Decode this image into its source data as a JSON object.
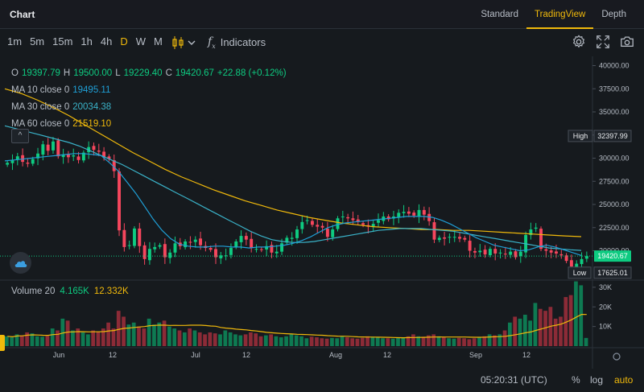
{
  "header": {
    "title": "Chart",
    "views": [
      {
        "label": "Standard",
        "active": false
      },
      {
        "label": "TradingView",
        "active": true
      },
      {
        "label": "Depth",
        "active": false
      }
    ]
  },
  "toolbar": {
    "intervals": [
      {
        "label": "1m",
        "active": false
      },
      {
        "label": "5m",
        "active": false
      },
      {
        "label": "15m",
        "active": false
      },
      {
        "label": "1h",
        "active": false
      },
      {
        "label": "4h",
        "active": false
      },
      {
        "label": "D",
        "active": true
      },
      {
        "label": "W",
        "active": false
      },
      {
        "label": "M",
        "active": false
      }
    ],
    "indicators_label": "Indicators",
    "fx_glyph": "f",
    "icons": [
      "candlestick-icon",
      "chevron-down-icon",
      "function-icon",
      "settings-gear-icon",
      "fullscreen-icon",
      "camera-icon"
    ]
  },
  "legend": {
    "ohlc": {
      "o_label": "O",
      "o": "19397.79",
      "h_label": "H",
      "h": "19500.00",
      "l_label": "L",
      "l": "19229.40",
      "c_label": "C",
      "c": "19420.67",
      "change": "+22.88 (+0.12%)"
    },
    "ma10": {
      "label": "MA 10 close 0",
      "value": "19495.11",
      "color": "#1f9fd6"
    },
    "ma30": {
      "label": "MA 30 close 0",
      "value": "20034.38",
      "color": "#3ab2c8"
    },
    "ma60": {
      "label": "MA 60 close 0",
      "value": "21519.10",
      "color": "#f0b90b"
    }
  },
  "collapse_glyph": "^",
  "price_axis": {
    "ticks": [
      "40000.00",
      "37500.00",
      "35000.00",
      "32500.00",
      "30000.00",
      "27500.00",
      "25000.00",
      "22500.00",
      "20000.00"
    ],
    "high_label": "High",
    "high_value": "32397.99",
    "low_label": "Low",
    "low_value": "17625.01",
    "last_value": "19420.67"
  },
  "volume": {
    "label": "Volume 20",
    "value": "4.165K",
    "ma_value": "12.332K",
    "ticks": [
      "30K",
      "20K",
      "10K"
    ]
  },
  "time_axis": {
    "labels": [
      "Jun",
      "12",
      "Jul",
      "12",
      "Aug",
      "12",
      "Sep",
      "12"
    ]
  },
  "bottom": {
    "time": "05:20:31 (UTC)",
    "percent": "%",
    "log": "log",
    "auto": "auto"
  },
  "colors": {
    "up": "#0ecb81",
    "down": "#f6465d",
    "accent": "#f0b90b",
    "background": "#161a1e"
  },
  "chart_data": {
    "type": "candlestick",
    "interval": "D",
    "ohlc_scale": "price",
    "x_labels": [
      "Jun",
      "12",
      "Jul",
      "12",
      "Aug",
      "12",
      "Sep",
      "12"
    ],
    "ylim": [
      17000,
      41000
    ],
    "volume_ylim": [
      0,
      32000
    ],
    "closes": [
      29500,
      29800,
      30200,
      29600,
      29400,
      29900,
      30500,
      31500,
      30800,
      31800,
      30200,
      30400,
      30100,
      30300,
      29800,
      30600,
      31200,
      30900,
      30700,
      30100,
      29900,
      28600,
      22200,
      20400,
      20600,
      22400,
      20500,
      19100,
      20200,
      20400,
      20600,
      19300,
      19800,
      20800,
      20500,
      21000,
      20900,
      21200,
      20600,
      20300,
      20100,
      19300,
      19500,
      19500,
      20300,
      21000,
      21600,
      21200,
      20300,
      20200,
      20100,
      20500,
      19800,
      19900,
      20800,
      21400,
      21400,
      22300,
      23100,
      23300,
      22800,
      22600,
      22500,
      21500,
      22300,
      23500,
      23700,
      23500,
      23300,
      23100,
      22800,
      22600,
      22900,
      23300,
      23700,
      23400,
      23700,
      24100,
      24200,
      24000,
      23800,
      24400,
      23900,
      23200,
      21200,
      21400,
      21300,
      21500,
      21500,
      21300,
      21200,
      20000,
      19800,
      20000,
      19600,
      20200,
      19700,
      19800,
      19600,
      19900,
      19300,
      19900,
      21700,
      22300,
      22500,
      20200,
      20000,
      19800,
      19700,
      19500,
      18900,
      18300,
      18600,
      19100,
      19420
    ],
    "ma10": [
      29700,
      29800,
      29900,
      30000,
      30100,
      30200,
      30300,
      30400,
      30500,
      30500,
      30400,
      30300,
      29500,
      28600,
      27400,
      26200,
      24800,
      23400,
      22200,
      21300,
      20700,
      20500,
      20400,
      20400,
      20500,
      20500,
      20400,
      20400,
      20300,
      20400,
      20400,
      20500,
      20600,
      20800,
      21100,
      21500,
      22000,
      22500,
      22800,
      23000,
      23100,
      23200,
      23300,
      23400,
      23500,
      23600,
      23700,
      23700,
      23700,
      23600,
      23300,
      22900,
      22400,
      21900,
      21400,
      21000,
      20600,
      20400,
      20200,
      20000,
      20100,
      20400,
      20600,
      20400,
      20100,
      19800,
      19495
    ],
    "ma30": [
      33500,
      33200,
      32900,
      32600,
      32300,
      32000,
      31700,
      31300,
      30800,
      30300,
      29800,
      29300,
      28700,
      28100,
      27500,
      26900,
      26300,
      25700,
      25100,
      24500,
      23900,
      23300,
      22700,
      22100,
      21600,
      21200,
      21000,
      20900,
      20900,
      21000,
      21200,
      21400,
      21600,
      21800,
      22000,
      22200,
      22300,
      22400,
      22400,
      22400,
      22300,
      22200,
      22100,
      21900,
      21700,
      21500,
      21300,
      21100,
      20900,
      20700,
      20500,
      20300,
      20200,
      20100,
      20034
    ],
    "ma60": [
      37500,
      37000,
      36300,
      35500,
      34600,
      33600,
      32600,
      31600,
      30600,
      29700,
      28800,
      28000,
      27300,
      26600,
      26000,
      25400,
      24900,
      24400,
      24000,
      23600,
      23300,
      23000,
      22800,
      22600,
      22500,
      22400,
      22300,
      22300,
      22200,
      22200,
      22100,
      22000,
      21900,
      21800,
      21700,
      21600,
      21519
    ],
    "volume": [
      5000,
      4500,
      6000,
      5500,
      7000,
      6500,
      5000,
      4800,
      5200,
      9000,
      8000,
      14000,
      13000,
      8000,
      9000,
      7000,
      6000,
      8000,
      7500,
      9000,
      12000,
      9000,
      18000,
      15000,
      11000,
      12000,
      10000,
      9000,
      14000,
      11000,
      12000,
      13000,
      10000,
      9000,
      8000,
      7000,
      9000,
      8000,
      7000,
      6000,
      7000,
      6500,
      6000,
      8000,
      7000,
      6000,
      5500,
      6000,
      7000,
      6500,
      5000,
      5500,
      6000,
      5000,
      4500,
      5000,
      6000,
      5500,
      5000,
      4000,
      4800,
      4500,
      4000,
      3800,
      4200,
      4000,
      5000,
      4500,
      4000,
      3800,
      4200,
      5000,
      4800,
      4500,
      4000,
      4000,
      3800,
      4200,
      4500,
      5000,
      6000,
      5000,
      4800,
      5500,
      6000,
      5000,
      4500,
      4000,
      3800,
      4200,
      4000,
      3500,
      4000,
      4500,
      5000,
      6000,
      5500,
      6000,
      8000,
      12000,
      15000,
      14000,
      16000,
      13000,
      22000,
      19000,
      18000,
      20000,
      14000,
      15000,
      25000,
      26000,
      33000,
      31000,
      4165
    ],
    "low_marker": 17625.01,
    "high_marker": 32397.99,
    "last_price": 19420.67
  }
}
